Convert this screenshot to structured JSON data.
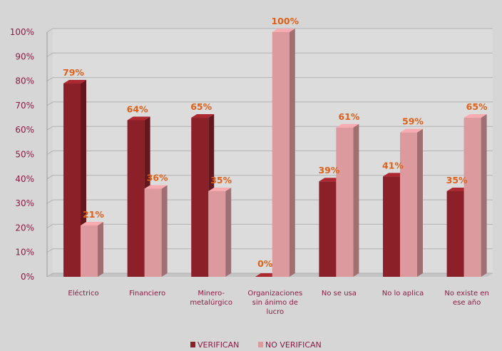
{
  "chart_data": {
    "type": "bar",
    "categories": [
      [
        "Eléctrico"
      ],
      [
        "Financiero"
      ],
      [
        "Minero-",
        "metalúrgico"
      ],
      [
        "Organizaciones",
        "sin ánimo de",
        "lucro"
      ],
      [
        "No se usa"
      ],
      [
        "No lo aplica"
      ],
      [
        "No existe en",
        "ese año"
      ]
    ],
    "series": [
      {
        "name": "VERIFICAN",
        "values": [
          79,
          64,
          65,
          0,
          39,
          41,
          35
        ],
        "color": "#8b2028"
      },
      {
        "name": "NO VERIFICAN",
        "values": [
          21,
          36,
          35,
          100,
          61,
          59,
          65
        ],
        "color": "#dd9a9e"
      }
    ],
    "data_labels": [
      [
        "79%",
        "64%",
        "65%",
        "0%",
        "39%",
        "41%",
        "35%"
      ],
      [
        "21%",
        "36%",
        "35%",
        "100%",
        "61%",
        "59%",
        "65%"
      ]
    ],
    "y_ticks": [
      "0%",
      "10%",
      "20%",
      "30%",
      "40%",
      "50%",
      "60%",
      "70%",
      "80%",
      "90%",
      "100%"
    ],
    "ylim": [
      0,
      100
    ],
    "legend_position": "bottom",
    "grid": true,
    "colors": {
      "background": "#d6d6d6",
      "label": "#e0601a",
      "axis_text": "#8a1c45"
    }
  }
}
